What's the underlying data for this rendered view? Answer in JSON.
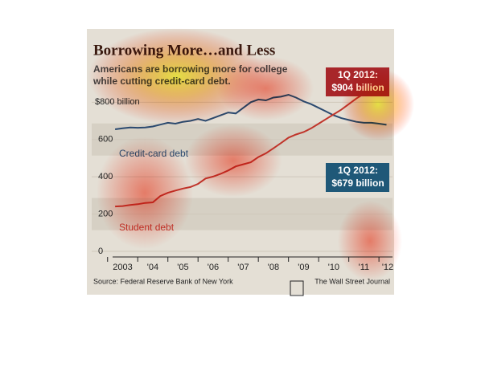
{
  "chart_data": {
    "type": "line",
    "title": "Borrowing More…and Less",
    "subtitle": [
      "Americans are borrowing more for college",
      "while cutting credit-card debt."
    ],
    "x": [
      2003.25,
      2003.5,
      2003.75,
      2004,
      2004.25,
      2004.5,
      2004.75,
      2005,
      2005.25,
      2005.5,
      2005.75,
      2006,
      2006.25,
      2006.5,
      2006.75,
      2007,
      2007.25,
      2007.5,
      2007.75,
      2008,
      2008.25,
      2008.5,
      2008.75,
      2009,
      2009.25,
      2009.5,
      2009.75,
      2010,
      2010.25,
      2010.5,
      2010.75,
      2011,
      2011.25,
      2011.5,
      2011.75,
      2012,
      2012.25
    ],
    "series": [
      {
        "name": "Credit-card debt",
        "color": "#2b4a70",
        "values": [
          655,
          660,
          665,
          663,
          665,
          670,
          680,
          690,
          685,
          695,
          700,
          710,
          700,
          715,
          730,
          745,
          740,
          770,
          800,
          815,
          810,
          825,
          830,
          840,
          825,
          805,
          790,
          770,
          750,
          730,
          715,
          705,
          695,
          690,
          690,
          685,
          679
        ]
      },
      {
        "name": "Student debt",
        "color": "#c0352b",
        "values": [
          241,
          243,
          249,
          253,
          260,
          263,
          297,
          314,
          326,
          337,
          345,
          362,
          391,
          401,
          416,
          434,
          456,
          467,
          478,
          506,
          526,
          553,
          581,
          610,
          627,
          640,
          660,
          685,
          710,
          735,
          760,
          790,
          820,
          845,
          865,
          880,
          904
        ]
      }
    ],
    "annotations": [
      {
        "text": [
          "1Q 2012:",
          "$904 billion"
        ],
        "color": "#a8262a"
      },
      {
        "text": [
          "1Q 2012:",
          "$679 billion"
        ],
        "color": "#1f5878"
      }
    ],
    "xlim": [
      2002.5,
      2012.45
    ],
    "xticks": [
      {
        "value": 2003,
        "label": "2003"
      },
      {
        "value": 2004,
        "label": "'04"
      },
      {
        "value": 2005,
        "label": "'05"
      },
      {
        "value": 2006,
        "label": "'06"
      },
      {
        "value": 2007,
        "label": "'07"
      },
      {
        "value": 2008,
        "label": "'08"
      },
      {
        "value": 2009,
        "label": "'09"
      },
      {
        "value": 2010,
        "label": "'10"
      },
      {
        "value": 2011,
        "label": "'11"
      },
      {
        "value": 2012,
        "label": "'12"
      }
    ],
    "ylim": [
      0,
      935
    ],
    "yticks": [
      0,
      200,
      400,
      600,
      {
        "value": 800,
        "label": "$800 billion"
      }
    ],
    "grid": true,
    "source": "Source: Federal Reserve Bank of New York",
    "credit": "The Wall Street Journal"
  }
}
